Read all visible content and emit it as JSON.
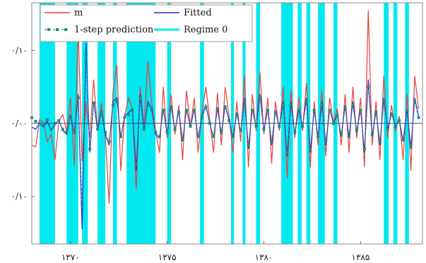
{
  "chart_data": {
    "type": "line",
    "xlabel": "",
    "ylabel": "",
    "xlim": [
      1368.0,
      1388.2
    ],
    "ylim": [
      -0.165,
      0.165
    ],
    "grid": false,
    "legend_placement": "top-left",
    "x_ticks": [
      {
        "value": 1370,
        "label": "۱۳۷۰"
      },
      {
        "value": 1375,
        "label": "۱۳۷۵"
      },
      {
        "value": 1380,
        "label": "۱۳۸۰"
      },
      {
        "value": 1385,
        "label": "۱۳۸۵"
      }
    ],
    "y_ticks": [
      {
        "value": 0.1,
        "label": "۰/۱۰"
      },
      {
        "value": 0.0,
        "label": "۰/۰۰"
      },
      {
        "value": -0.1,
        "label": "۰/۱۰"
      }
    ],
    "legend": [
      {
        "label": "m",
        "color": "#e8413a",
        "style": "solid"
      },
      {
        "label": "Fitted",
        "color": "#2a2ad6",
        "style": "solid"
      },
      {
        "label": "1-step prediction",
        "color": "#1f8f7f",
        "style": "dashed-square"
      },
      {
        "label": "Regime 0",
        "color": "#00e8f0",
        "style": "band"
      }
    ],
    "regime0_intervals": [
      [
        1368.4,
        1369.2
      ],
      [
        1369.8,
        1370.4
      ],
      [
        1370.6,
        1370.9
      ],
      [
        1371.4,
        1371.8
      ],
      [
        1372.2,
        1372.4
      ],
      [
        1372.9,
        1374.4
      ],
      [
        1375.0,
        1375.2
      ],
      [
        1376.7,
        1376.9
      ],
      [
        1378.3,
        1378.45
      ],
      [
        1378.9,
        1379.05
      ],
      [
        1379.6,
        1379.8
      ],
      [
        1380.9,
        1381.5
      ],
      [
        1381.75,
        1381.95
      ],
      [
        1382.2,
        1382.4
      ],
      [
        1382.8,
        1383.15
      ],
      [
        1383.6,
        1383.8
      ],
      [
        1386.2,
        1386.45
      ],
      [
        1386.7,
        1386.9
      ],
      [
        1387.3,
        1387.5
      ]
    ],
    "series": [
      {
        "name": "m",
        "color": "#e8413a",
        "x": [
          1368.0,
          1368.2,
          1368.4,
          1368.6,
          1368.8,
          1369.0,
          1369.2,
          1369.4,
          1369.6,
          1369.8,
          1370.0,
          1370.2,
          1370.4,
          1370.6,
          1370.8,
          1371.0,
          1371.2,
          1371.4,
          1371.6,
          1371.8,
          1372.0,
          1372.2,
          1372.4,
          1372.6,
          1372.8,
          1373.0,
          1373.2,
          1373.4,
          1373.6,
          1373.8,
          1374.0,
          1374.2,
          1374.4,
          1374.6,
          1374.8,
          1375.0,
          1375.2,
          1375.4,
          1375.6,
          1375.8,
          1376.0,
          1376.2,
          1376.4,
          1376.6,
          1376.8,
          1377.0,
          1377.2,
          1377.4,
          1377.6,
          1377.8,
          1378.0,
          1378.2,
          1378.4,
          1378.6,
          1378.8,
          1379.0,
          1379.2,
          1379.4,
          1379.6,
          1379.8,
          1380.0,
          1380.2,
          1380.4,
          1380.6,
          1380.8,
          1381.0,
          1381.2,
          1381.4,
          1381.6,
          1381.8,
          1382.0,
          1382.2,
          1382.4,
          1382.6,
          1382.8,
          1383.0,
          1383.2,
          1383.4,
          1383.6,
          1383.8,
          1384.0,
          1384.2,
          1384.4,
          1384.6,
          1384.8,
          1385.0,
          1385.2,
          1385.4,
          1385.6,
          1385.8,
          1386.0,
          1386.2,
          1386.4,
          1386.6,
          1386.8,
          1387.0,
          1387.2,
          1387.4,
          1387.6,
          1387.8,
          1388.0
        ],
        "values": [
          -0.03,
          -0.032,
          0.005,
          0.002,
          -0.025,
          -0.015,
          -0.05,
          0.003,
          0.012,
          -0.01,
          0.035,
          -0.058,
          0.13,
          -0.052,
          0.03,
          -0.02,
          0.06,
          -0.01,
          0.028,
          -0.018,
          -0.11,
          0.045,
          0.08,
          -0.065,
          0.01,
          0.035,
          0.02,
          -0.09,
          0.05,
          -0.005,
          0.085,
          0.028,
          -0.01,
          -0.04,
          0.05,
          -0.02,
          0.04,
          -0.015,
          0.025,
          -0.05,
          0.045,
          -0.005,
          0.035,
          -0.04,
          0.015,
          0.05,
          0.005,
          -0.04,
          0.042,
          -0.03,
          0.05,
          0.01,
          -0.04,
          0.03,
          -0.025,
          0.065,
          -0.06,
          0.04,
          -0.01,
          0.07,
          -0.015,
          0.035,
          -0.055,
          0.03,
          -0.01,
          0.05,
          -0.075,
          0.045,
          -0.02,
          0.035,
          -0.01,
          0.055,
          -0.06,
          0.03,
          -0.03,
          0.045,
          -0.045,
          0.035,
          0.0,
          0.02,
          -0.03,
          0.04,
          -0.04,
          0.05,
          -0.02,
          0.035,
          -0.06,
          0.155,
          -0.03,
          0.03,
          -0.05,
          0.065,
          -0.02,
          0.025,
          -0.01,
          0.01,
          -0.05,
          0.04,
          -0.065,
          0.065,
          0.02
        ]
      },
      {
        "name": "Fitted",
        "color": "#2a2ad6",
        "x": [
          1368.0,
          1368.2,
          1368.4,
          1368.6,
          1368.8,
          1369.0,
          1369.2,
          1369.4,
          1369.6,
          1369.8,
          1370.0,
          1370.2,
          1370.4,
          1370.6,
          1370.8,
          1371.0,
          1371.2,
          1371.4,
          1371.6,
          1371.8,
          1372.0,
          1372.2,
          1372.4,
          1372.6,
          1372.8,
          1373.0,
          1373.2,
          1373.4,
          1373.6,
          1373.8,
          1374.0,
          1374.2,
          1374.4,
          1374.6,
          1374.8,
          1375.0,
          1375.2,
          1375.4,
          1375.6,
          1375.8,
          1376.0,
          1376.2,
          1376.4,
          1376.6,
          1376.8,
          1377.0,
          1377.2,
          1377.4,
          1377.6,
          1377.8,
          1378.0,
          1378.2,
          1378.4,
          1378.6,
          1378.8,
          1379.0,
          1379.2,
          1379.4,
          1379.6,
          1379.8,
          1380.0,
          1380.2,
          1380.4,
          1380.6,
          1380.8,
          1381.0,
          1381.2,
          1381.4,
          1381.6,
          1381.8,
          1382.0,
          1382.2,
          1382.4,
          1382.6,
          1382.8,
          1383.0,
          1383.2,
          1383.4,
          1383.6,
          1383.8,
          1384.0,
          1384.2,
          1384.4,
          1384.6,
          1384.8,
          1385.0,
          1385.2,
          1385.4,
          1385.6,
          1385.8,
          1386.0,
          1386.2,
          1386.4,
          1386.6,
          1386.8,
          1387.0,
          1387.2,
          1387.4,
          1387.6,
          1387.8,
          1388.0
        ],
        "values": [
          -0.005,
          -0.008,
          0.0,
          -0.005,
          0.003,
          -0.01,
          -0.002,
          0.005,
          -0.01,
          -0.015,
          0.012,
          -0.015,
          0.04,
          -0.145,
          0.11,
          -0.04,
          0.03,
          -0.01,
          0.018,
          -0.015,
          -0.03,
          0.03,
          0.035,
          -0.02,
          0.01,
          0.015,
          0.02,
          -0.065,
          0.04,
          -0.01,
          0.03,
          0.02,
          -0.015,
          -0.02,
          0.02,
          -0.015,
          0.025,
          -0.01,
          0.018,
          -0.025,
          0.02,
          -0.005,
          0.02,
          -0.02,
          0.01,
          0.025,
          0.0,
          -0.02,
          0.022,
          -0.015,
          0.025,
          0.005,
          -0.02,
          0.015,
          -0.012,
          0.035,
          -0.035,
          0.02,
          -0.005,
          0.04,
          -0.01,
          0.02,
          -0.03,
          0.018,
          -0.005,
          0.03,
          -0.045,
          0.03,
          -0.015,
          0.02,
          -0.005,
          0.035,
          -0.04,
          0.02,
          -0.02,
          0.03,
          -0.03,
          0.02,
          0.0,
          0.012,
          -0.018,
          0.025,
          -0.02,
          0.03,
          -0.012,
          0.02,
          -0.04,
          0.06,
          -0.018,
          0.018,
          -0.03,
          0.035,
          -0.01,
          0.015,
          -0.005,
          0.005,
          -0.025,
          0.02,
          -0.035,
          0.035,
          0.01
        ]
      },
      {
        "name": "1-step prediction",
        "color": "#1f8f7f",
        "x": [
          1368.0,
          1368.2,
          1368.4,
          1368.6,
          1368.8,
          1369.0,
          1369.2,
          1369.4,
          1369.6,
          1369.8,
          1370.0,
          1370.2,
          1370.4,
          1370.6,
          1370.8,
          1371.0,
          1371.2,
          1371.4,
          1371.6,
          1371.8,
          1372.0,
          1372.2,
          1372.4,
          1372.6,
          1372.8,
          1373.0,
          1373.2,
          1373.4,
          1373.6,
          1373.8,
          1374.0,
          1374.2,
          1374.4,
          1374.6,
          1374.8,
          1375.0,
          1375.2,
          1375.4,
          1375.6,
          1375.8,
          1376.0,
          1376.2,
          1376.4,
          1376.6,
          1376.8,
          1377.0,
          1377.2,
          1377.4,
          1377.6,
          1377.8,
          1378.0,
          1378.2,
          1378.4,
          1378.6,
          1378.8,
          1379.0,
          1379.2,
          1379.4,
          1379.6,
          1379.8,
          1380.0,
          1380.2,
          1380.4,
          1380.6,
          1380.8,
          1381.0,
          1381.2,
          1381.4,
          1381.6,
          1381.8,
          1382.0,
          1382.2,
          1382.4,
          1382.6,
          1382.8,
          1383.0,
          1383.2,
          1383.4,
          1383.6,
          1383.8,
          1384.0,
          1384.2,
          1384.4,
          1384.6,
          1384.8,
          1385.0,
          1385.2,
          1385.4,
          1385.6,
          1385.8,
          1386.0,
          1386.2,
          1386.4,
          1386.6,
          1386.8,
          1387.0,
          1387.2,
          1387.4,
          1387.6,
          1387.8,
          1388.0
        ],
        "values": [
          0.008,
          0.003,
          0.0,
          -0.003,
          0.005,
          -0.008,
          0.0,
          0.004,
          -0.008,
          -0.012,
          0.01,
          -0.012,
          0.035,
          -0.11,
          0.095,
          -0.035,
          0.028,
          -0.008,
          0.015,
          -0.012,
          -0.025,
          0.025,
          0.03,
          -0.018,
          0.008,
          0.012,
          0.018,
          -0.055,
          0.035,
          -0.008,
          0.025,
          0.018,
          -0.012,
          -0.018,
          0.018,
          -0.012,
          0.022,
          -0.008,
          0.015,
          -0.022,
          0.018,
          -0.004,
          0.018,
          -0.018,
          0.008,
          0.022,
          0.0,
          -0.018,
          0.02,
          -0.012,
          0.022,
          0.004,
          -0.018,
          0.012,
          -0.01,
          0.03,
          -0.03,
          0.018,
          -0.004,
          0.035,
          -0.008,
          0.018,
          -0.025,
          0.015,
          -0.004,
          0.025,
          -0.04,
          0.025,
          -0.012,
          0.018,
          -0.004,
          0.03,
          -0.035,
          0.018,
          -0.018,
          0.025,
          -0.025,
          0.018,
          0.0,
          0.01,
          -0.015,
          0.022,
          -0.018,
          0.025,
          -0.01,
          0.018,
          -0.035,
          0.05,
          -0.015,
          0.015,
          -0.025,
          0.03,
          -0.008,
          0.012,
          -0.004,
          0.004,
          -0.022,
          0.018,
          -0.03,
          0.03,
          0.008
        ]
      }
    ]
  }
}
